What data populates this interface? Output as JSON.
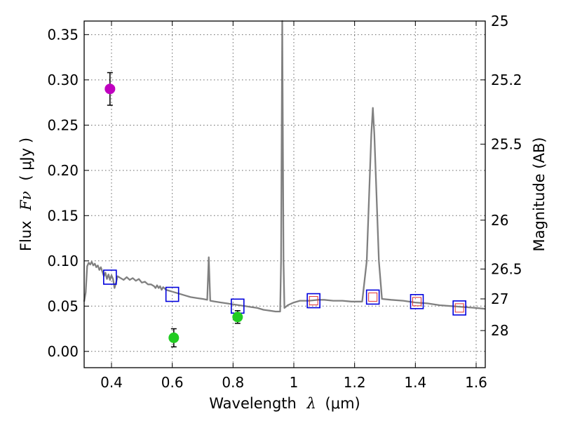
{
  "chart_data": {
    "type": "scatter",
    "xlabel_prefix": "Wavelength",
    "xlabel_symbol": "λ",
    "xlabel_unit": "(μm)",
    "ylabel_prefix": "Flux",
    "ylabel_symbol": "Fν",
    "ylabel_unit": "( μJy )",
    "y2label": "Magnitude (AB)",
    "xlim": [
      0.31,
      1.63
    ],
    "ylim": [
      -0.018,
      0.365
    ],
    "grid": true,
    "x_ticks": [
      {
        "value": 0.4,
        "label": "0.4"
      },
      {
        "value": 0.6,
        "label": "0.6"
      },
      {
        "value": 0.8,
        "label": "0.8"
      },
      {
        "value": 1.0,
        "label": "1"
      },
      {
        "value": 1.2,
        "label": "1.2"
      },
      {
        "value": 1.4,
        "label": "1.4"
      },
      {
        "value": 1.6,
        "label": "1.6"
      }
    ],
    "y_ticks": [
      {
        "value": 0.0,
        "label": "0.00"
      },
      {
        "value": 0.05,
        "label": "0.05"
      },
      {
        "value": 0.1,
        "label": "0.10"
      },
      {
        "value": 0.15,
        "label": "0.15"
      },
      {
        "value": 0.2,
        "label": "0.20"
      },
      {
        "value": 0.25,
        "label": "0.25"
      },
      {
        "value": 0.3,
        "label": "0.30"
      },
      {
        "value": 0.35,
        "label": "0.35"
      }
    ],
    "y2_ticks": [
      {
        "flux": 0.365,
        "label": "25"
      },
      {
        "flux": 0.3,
        "label": "25.2"
      },
      {
        "flux": 0.229,
        "label": "25.5"
      },
      {
        "flux": 0.145,
        "label": "26"
      },
      {
        "flux": 0.091,
        "label": "26.5"
      },
      {
        "flux": 0.058,
        "label": "27"
      },
      {
        "flux": 0.023,
        "label": "28"
      }
    ],
    "colors": {
      "model": "#808080",
      "model_photometry": "#0000dd",
      "inner_photometry": "#e03030",
      "observed_blue": "#c000c0",
      "observed_green": "#22cc22",
      "errorbar": "#000000",
      "grid": "#666666"
    },
    "series": [
      {
        "name": "model spectrum",
        "kind": "line",
        "points": [
          [
            0.31,
            0.055
          ],
          [
            0.315,
            0.065
          ],
          [
            0.32,
            0.094
          ],
          [
            0.325,
            0.098
          ],
          [
            0.33,
            0.096
          ],
          [
            0.335,
            0.099
          ],
          [
            0.34,
            0.095
          ],
          [
            0.345,
            0.097
          ],
          [
            0.35,
            0.093
          ],
          [
            0.355,
            0.095
          ],
          [
            0.36,
            0.09
          ],
          [
            0.365,
            0.093
          ],
          [
            0.37,
            0.088
          ],
          [
            0.375,
            0.083
          ],
          [
            0.38,
            0.087
          ],
          [
            0.385,
            0.08
          ],
          [
            0.39,
            0.085
          ],
          [
            0.395,
            0.079
          ],
          [
            0.4,
            0.084
          ],
          [
            0.405,
            0.08
          ],
          [
            0.41,
            0.07
          ],
          [
            0.415,
            0.076
          ],
          [
            0.42,
            0.083
          ],
          [
            0.43,
            0.081
          ],
          [
            0.44,
            0.079
          ],
          [
            0.45,
            0.082
          ],
          [
            0.46,
            0.079
          ],
          [
            0.47,
            0.081
          ],
          [
            0.48,
            0.078
          ],
          [
            0.49,
            0.08
          ],
          [
            0.5,
            0.076
          ],
          [
            0.51,
            0.077
          ],
          [
            0.52,
            0.074
          ],
          [
            0.53,
            0.074
          ],
          [
            0.54,
            0.072
          ],
          [
            0.545,
            0.07
          ],
          [
            0.55,
            0.073
          ],
          [
            0.555,
            0.07
          ],
          [
            0.56,
            0.072
          ],
          [
            0.565,
            0.068
          ],
          [
            0.57,
            0.071
          ],
          [
            0.58,
            0.068
          ],
          [
            0.59,
            0.067
          ],
          [
            0.6,
            0.066
          ],
          [
            0.62,
            0.064
          ],
          [
            0.64,
            0.062
          ],
          [
            0.66,
            0.06
          ],
          [
            0.68,
            0.059
          ],
          [
            0.7,
            0.058
          ],
          [
            0.715,
            0.057
          ],
          [
            0.72,
            0.104
          ],
          [
            0.725,
            0.056
          ],
          [
            0.74,
            0.055
          ],
          [
            0.76,
            0.054
          ],
          [
            0.78,
            0.053
          ],
          [
            0.8,
            0.052
          ],
          [
            0.82,
            0.051
          ],
          [
            0.84,
            0.05
          ],
          [
            0.86,
            0.049
          ],
          [
            0.88,
            0.048
          ],
          [
            0.9,
            0.046
          ],
          [
            0.92,
            0.045
          ],
          [
            0.94,
            0.044
          ],
          [
            0.955,
            0.044
          ],
          [
            0.958,
            0.1
          ],
          [
            0.962,
            0.365
          ],
          [
            0.966,
            0.1
          ],
          [
            0.969,
            0.048
          ],
          [
            0.98,
            0.051
          ],
          [
            1.0,
            0.054
          ],
          [
            1.02,
            0.056
          ],
          [
            1.05,
            0.056
          ],
          [
            1.08,
            0.057
          ],
          [
            1.1,
            0.057
          ],
          [
            1.13,
            0.056
          ],
          [
            1.16,
            0.056
          ],
          [
            1.19,
            0.055
          ],
          [
            1.21,
            0.055
          ],
          [
            1.225,
            0.055
          ],
          [
            1.24,
            0.1
          ],
          [
            1.255,
            0.24
          ],
          [
            1.26,
            0.269
          ],
          [
            1.265,
            0.24
          ],
          [
            1.28,
            0.1
          ],
          [
            1.29,
            0.058
          ],
          [
            1.32,
            0.057
          ],
          [
            1.36,
            0.056
          ],
          [
            1.4,
            0.054
          ],
          [
            1.44,
            0.053
          ],
          [
            1.48,
            0.051
          ],
          [
            1.52,
            0.05
          ],
          [
            1.56,
            0.049
          ],
          [
            1.6,
            0.048
          ],
          [
            1.63,
            0.047
          ]
        ]
      },
      {
        "name": "model photometry",
        "kind": "open-square",
        "x": [
          0.395,
          0.6,
          0.815,
          1.065,
          1.26,
          1.405,
          1.545
        ],
        "y": [
          0.082,
          0.063,
          0.05,
          0.056,
          0.06,
          0.055,
          0.048
        ]
      },
      {
        "name": "model photometry (inner)",
        "kind": "small-square",
        "x": [
          1.065,
          1.26,
          1.405,
          1.545
        ],
        "y": [
          0.056,
          0.06,
          0.055,
          0.048
        ]
      },
      {
        "name": "observed photometry",
        "kind": "filled-circle",
        "points": [
          {
            "x": 0.395,
            "y": 0.29,
            "err": 0.018,
            "color": "observed_blue"
          },
          {
            "x": 0.605,
            "y": 0.015,
            "err": 0.01,
            "color": "observed_green"
          },
          {
            "x": 0.815,
            "y": 0.038,
            "err": 0.007,
            "color": "observed_green"
          }
        ]
      }
    ]
  }
}
